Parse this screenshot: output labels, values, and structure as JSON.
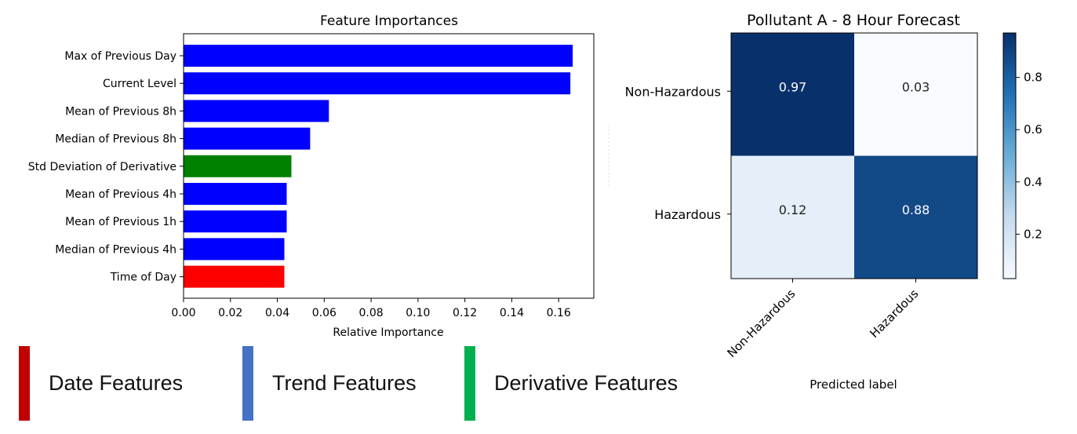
{
  "chart_data": [
    {
      "type": "bar",
      "orientation": "horizontal",
      "title": "Feature Importances",
      "xlabel": "Relative Importance",
      "ylabel": "",
      "xlim": [
        0.0,
        0.175
      ],
      "xticks": [
        "0.00",
        "0.02",
        "0.04",
        "0.06",
        "0.08",
        "0.10",
        "0.12",
        "0.14",
        "0.16"
      ],
      "grid": false,
      "categories": [
        "Max of Previous Day",
        "Current Level",
        "Mean of Previous 8h",
        "Median of Previous 8h",
        "Std Deviation of Derivative",
        "Mean of Previous 4h",
        "Mean of Previous 1h",
        "Median of Previous 4h",
        "Time of Day"
      ],
      "values": [
        0.166,
        0.165,
        0.062,
        0.054,
        0.046,
        0.044,
        0.044,
        0.043,
        0.043
      ],
      "bar_colors": [
        "#0000ff",
        "#0000ff",
        "#0000ff",
        "#0000ff",
        "#008000",
        "#0000ff",
        "#0000ff",
        "#0000ff",
        "#ff0000"
      ]
    },
    {
      "type": "heatmap",
      "title": "Pollutant A - 8 Hour Forecast",
      "xlabel": "Predicted label",
      "ylabel": "",
      "row_labels": [
        "Non-Hazardous",
        "Hazardous"
      ],
      "col_labels": [
        "Non-Hazardous",
        "Hazardous"
      ],
      "values": [
        [
          0.97,
          0.03
        ],
        [
          0.12,
          0.88
        ]
      ],
      "cell_text": [
        [
          "0.97",
          "0.03"
        ],
        [
          "0.12",
          "0.88"
        ]
      ],
      "colormap": "Blues",
      "colorbar_ticks": [
        "0.2",
        "0.4",
        "0.6",
        "0.8"
      ],
      "colorbar_range": [
        0.03,
        0.97
      ]
    }
  ],
  "legend": {
    "items": [
      {
        "label": "Date Features",
        "color": "#c00000"
      },
      {
        "label": "Trend Features",
        "color": "#4472c4"
      },
      {
        "label": "Derivative Features",
        "color": "#00b050"
      }
    ]
  }
}
